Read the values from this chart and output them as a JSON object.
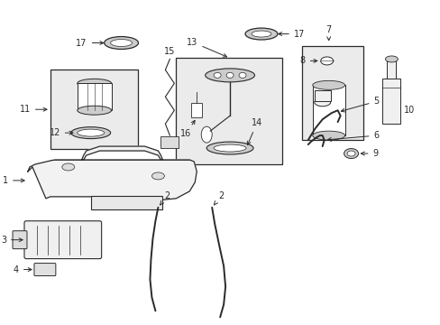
{
  "bg_color": "#ffffff",
  "line_color": "#2a2a2a",
  "box_fill": "#ebebeb",
  "fig_width": 4.89,
  "fig_height": 3.6,
  "dpi": 100
}
